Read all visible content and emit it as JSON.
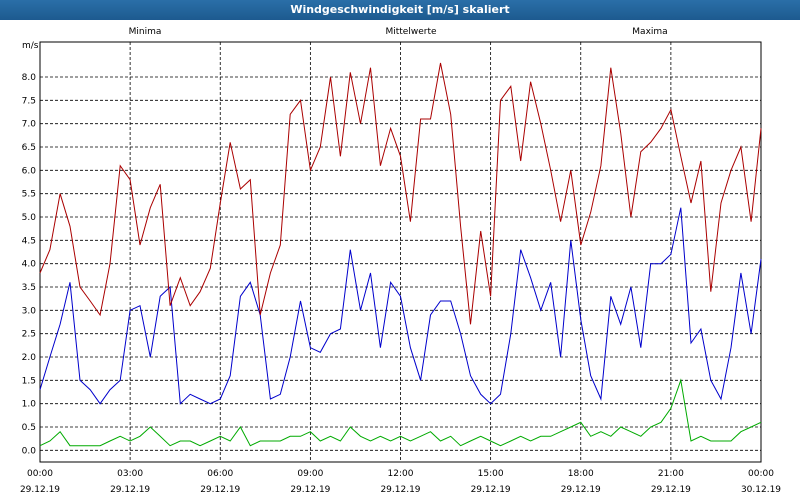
{
  "title": "Windgeschwindigkeit [m/s] skaliert",
  "chart_data": {
    "type": "line",
    "title": "Windgeschwindigkeit [m/s] skaliert",
    "ylabel": "m/s",
    "ylim": [
      -0.25,
      8.75
    ],
    "yticks": [
      "0.0",
      "0.5",
      "1.0",
      "1.5",
      "2.0",
      "2.5",
      "3.0",
      "3.5",
      "4.0",
      "4.5",
      "5.0",
      "5.5",
      "6.0",
      "6.5",
      "7.0",
      "7.5",
      "8.0"
    ],
    "xlim_hours": [
      0,
      24
    ],
    "xticks": [
      {
        "time": "00:00",
        "date": "29.12.19"
      },
      {
        "time": "03:00",
        "date": "29.12.19"
      },
      {
        "time": "06:00",
        "date": "29.12.19"
      },
      {
        "time": "09:00",
        "date": "29.12.19"
      },
      {
        "time": "12:00",
        "date": "29.12.19"
      },
      {
        "time": "15:00",
        "date": "29.12.19"
      },
      {
        "time": "18:00",
        "date": "29.12.19"
      },
      {
        "time": "21:00",
        "date": "29.12.19"
      },
      {
        "time": "00:00",
        "date": "30.12.19"
      }
    ],
    "grid": true,
    "legend": "top",
    "series": [
      {
        "name": "Minima",
        "color": "#00aa00",
        "x": [
          0,
          0.33,
          0.67,
          1,
          1.33,
          1.67,
          2,
          2.33,
          2.67,
          3,
          3.33,
          3.67,
          4,
          4.33,
          4.67,
          5,
          5.33,
          5.67,
          6,
          6.33,
          6.67,
          7,
          7.33,
          7.67,
          8,
          8.33,
          8.67,
          9,
          9.33,
          9.67,
          10,
          10.33,
          10.67,
          11,
          11.33,
          11.67,
          12,
          12.33,
          12.67,
          13,
          13.33,
          13.67,
          14,
          14.33,
          14.67,
          15,
          15.33,
          15.67,
          16,
          16.33,
          16.67,
          17,
          17.33,
          17.67,
          18,
          18.33,
          18.67,
          19,
          19.33,
          19.67,
          20,
          20.33,
          20.67,
          21,
          21.33,
          21.67,
          22,
          22.33,
          22.67,
          23,
          23.33,
          23.67,
          24
        ],
        "y": [
          0.1,
          0.2,
          0.4,
          0.1,
          0.1,
          0.1,
          0.1,
          0.2,
          0.3,
          0.2,
          0.3,
          0.5,
          0.3,
          0.1,
          0.2,
          0.2,
          0.1,
          0.2,
          0.3,
          0.2,
          0.5,
          0.1,
          0.2,
          0.2,
          0.2,
          0.3,
          0.3,
          0.4,
          0.2,
          0.3,
          0.2,
          0.5,
          0.3,
          0.2,
          0.3,
          0.2,
          0.3,
          0.2,
          0.3,
          0.4,
          0.2,
          0.3,
          0.1,
          0.2,
          0.3,
          0.2,
          0.1,
          0.2,
          0.3,
          0.2,
          0.3,
          0.3,
          0.4,
          0.5,
          0.6,
          0.3,
          0.4,
          0.3,
          0.5,
          0.4,
          0.3,
          0.5,
          0.6,
          0.9,
          1.5,
          0.2,
          0.3,
          0.2,
          0.2,
          0.2,
          0.4,
          0.5,
          0.6
        ]
      },
      {
        "name": "Mittelwerte",
        "color": "#0000cc",
        "x": [
          0,
          0.33,
          0.67,
          1,
          1.33,
          1.67,
          2,
          2.33,
          2.67,
          3,
          3.33,
          3.67,
          4,
          4.33,
          4.67,
          5,
          5.33,
          5.67,
          6,
          6.33,
          6.67,
          7,
          7.33,
          7.67,
          8,
          8.33,
          8.67,
          9,
          9.33,
          9.67,
          10,
          10.33,
          10.67,
          11,
          11.33,
          11.67,
          12,
          12.33,
          12.67,
          13,
          13.33,
          13.67,
          14,
          14.33,
          14.67,
          15,
          15.33,
          15.67,
          16,
          16.33,
          16.67,
          17,
          17.33,
          17.67,
          18,
          18.33,
          18.67,
          19,
          19.33,
          19.67,
          20,
          20.33,
          20.67,
          21,
          21.33,
          21.67,
          22,
          22.33,
          22.67,
          23,
          23.33,
          23.67,
          24
        ],
        "y": [
          1.3,
          2.0,
          2.7,
          3.6,
          1.5,
          1.3,
          1.0,
          1.3,
          1.5,
          3.0,
          3.1,
          2.0,
          3.3,
          3.5,
          1.0,
          1.2,
          1.1,
          1.0,
          1.1,
          1.6,
          3.3,
          3.6,
          2.9,
          1.1,
          1.2,
          2.0,
          3.2,
          2.2,
          2.1,
          2.5,
          2.6,
          4.3,
          3.0,
          3.8,
          2.2,
          3.6,
          3.3,
          2.2,
          1.5,
          2.9,
          3.2,
          3.2,
          2.5,
          1.6,
          1.2,
          1.0,
          1.2,
          2.5,
          4.3,
          3.7,
          3.0,
          3.6,
          2.0,
          4.5,
          2.8,
          1.6,
          1.1,
          3.3,
          2.7,
          3.5,
          2.2,
          4.0,
          4.0,
          4.2,
          5.2,
          2.3,
          2.6,
          1.5,
          1.1,
          2.2,
          3.8,
          2.5,
          4.1
        ]
      },
      {
        "name": "Maxima",
        "color": "#aa0000",
        "x": [
          0,
          0.33,
          0.67,
          1,
          1.33,
          1.67,
          2,
          2.33,
          2.67,
          3,
          3.33,
          3.67,
          4,
          4.33,
          4.67,
          5,
          5.33,
          5.67,
          6,
          6.33,
          6.67,
          7,
          7.33,
          7.67,
          8,
          8.33,
          8.67,
          9,
          9.33,
          9.67,
          10,
          10.33,
          10.67,
          11,
          11.33,
          11.67,
          12,
          12.33,
          12.67,
          13,
          13.33,
          13.67,
          14,
          14.33,
          14.67,
          15,
          15.33,
          15.67,
          16,
          16.33,
          16.67,
          17,
          17.33,
          17.67,
          18,
          18.33,
          18.67,
          19,
          19.33,
          19.67,
          20,
          20.33,
          20.67,
          21,
          21.33,
          21.67,
          22,
          22.33,
          22.67,
          23,
          23.33,
          23.67,
          24
        ],
        "y": [
          3.8,
          4.3,
          5.5,
          4.8,
          3.5,
          3.2,
          2.9,
          4.0,
          6.1,
          5.8,
          4.4,
          5.2,
          5.7,
          3.1,
          3.7,
          3.1,
          3.4,
          3.9,
          5.3,
          6.6,
          5.6,
          5.8,
          2.9,
          3.8,
          4.4,
          7.2,
          7.5,
          6.0,
          6.5,
          8.0,
          6.3,
          8.1,
          7.0,
          8.2,
          6.1,
          6.9,
          6.3,
          4.9,
          7.1,
          7.1,
          8.3,
          7.2,
          4.8,
          2.7,
          4.7,
          3.3,
          7.5,
          7.8,
          6.2,
          7.9,
          7.0,
          6.0,
          4.9,
          6.0,
          4.4,
          5.1,
          6.1,
          8.2,
          6.8,
          5.0,
          6.4,
          6.6,
          6.9,
          7.3,
          6.3,
          5.3,
          6.2,
          3.4,
          5.3,
          6.0,
          6.5,
          4.9,
          6.9
        ]
      }
    ]
  }
}
